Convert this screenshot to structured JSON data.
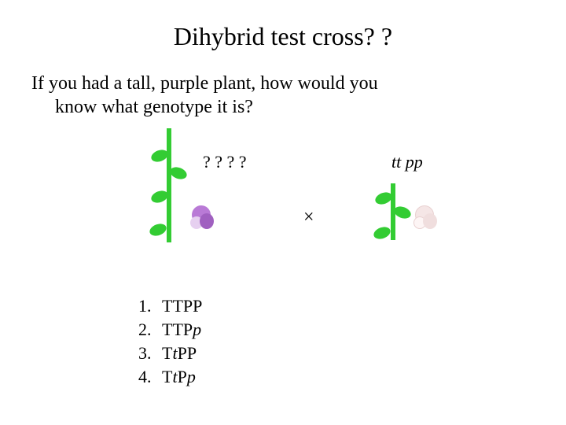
{
  "title": "Dihybrid test cross? ?",
  "question_line1": "If you had a tall, purple plant, how would you",
  "question_line2": "know what genotype it is?",
  "unknown_genotype": "? ? ? ?",
  "known_genotype_t": "t",
  "known_genotype_tt": "t",
  "known_genotype_sp": "  ",
  "known_genotype_p": "p",
  "known_genotype_pp": "p",
  "cross_symbol": "×",
  "options": {
    "n1": "1.",
    "g1a": "TTPP",
    "n2": "2.",
    "g2a": "TTP",
    "g2b": "p",
    "n3": "3.",
    "g3a": "T",
    "g3b": "t",
    "g3c": "PP",
    "n4": "4.",
    "g4a": "T",
    "g4b": "t",
    "g4c": "P",
    "g4d": "p"
  },
  "colors": {
    "stem": "#33cc33",
    "purple_flower": "#b97ad6",
    "white_flower": "#f5e6e6",
    "background": "#ffffff",
    "text": "#000000"
  }
}
